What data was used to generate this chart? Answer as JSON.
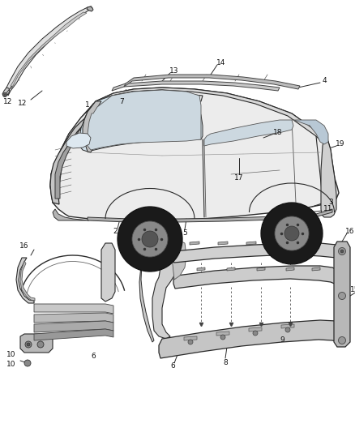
{
  "bg_color": "#ffffff",
  "fig_width": 4.38,
  "fig_height": 5.33,
  "dpi": 100,
  "lc": "#2a2a2a",
  "lw": 0.7,
  "fs": 6.5
}
